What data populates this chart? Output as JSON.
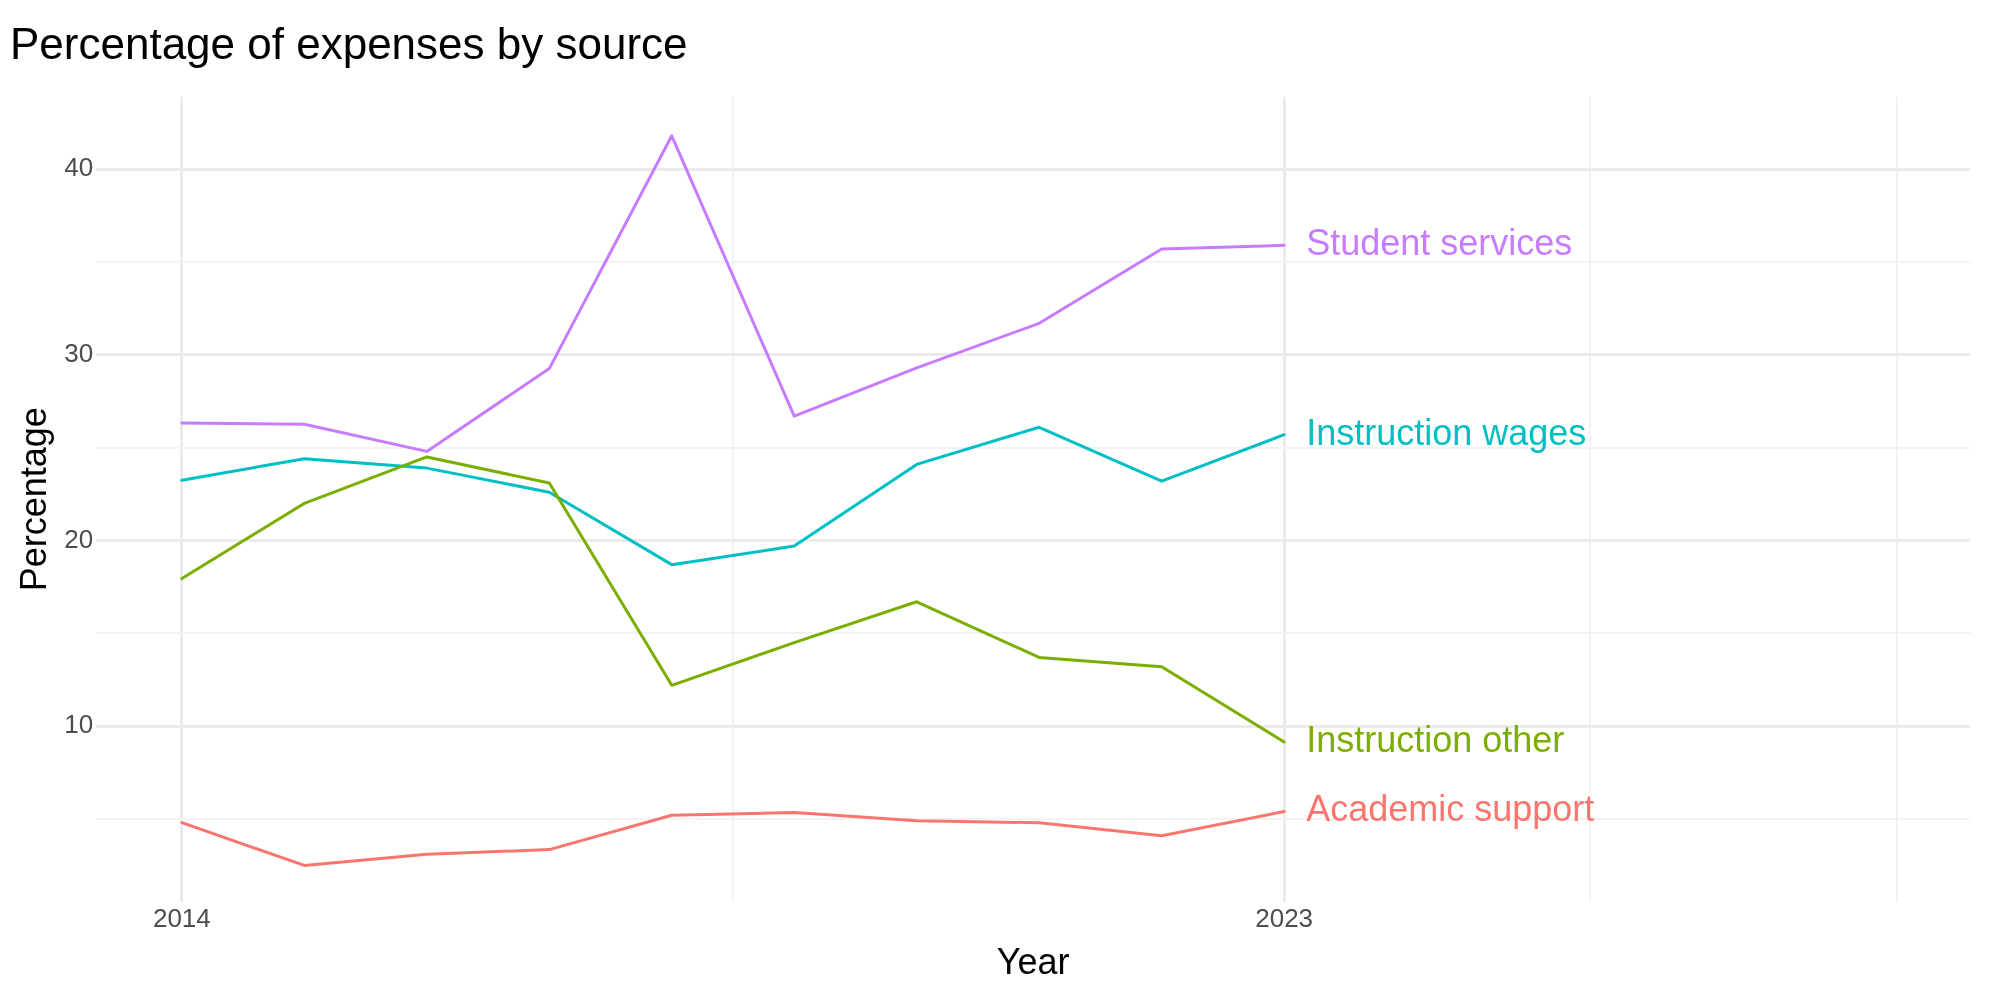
{
  "chart_data": {
    "type": "line",
    "title": "Percentage of expenses by source",
    "xlabel": "Year",
    "ylabel": "Percentage",
    "x": [
      2014,
      2015,
      2016,
      2017,
      2018,
      2019,
      2020,
      2021,
      2022,
      2023
    ],
    "series": [
      {
        "name": "Academic support",
        "color": "#f8766d",
        "values": [
          4.8,
          2.5,
          3.1,
          3.35,
          5.2,
          5.35,
          4.9,
          4.8,
          4.1,
          5.4
        ]
      },
      {
        "name": "Instruction other",
        "color": "#7cae00",
        "values": [
          17.95,
          22.0,
          24.5,
          23.1,
          12.2,
          14.5,
          16.7,
          13.7,
          13.2,
          9.15
        ]
      },
      {
        "name": "Instruction wages",
        "color": "#00bfc4",
        "values": [
          23.25,
          24.4,
          23.9,
          22.6,
          18.7,
          19.7,
          24.1,
          26.1,
          23.2,
          25.7
        ]
      },
      {
        "name": "Student services",
        "color": "#c77cff",
        "values": [
          26.33,
          26.26,
          24.8,
          29.26,
          41.8,
          26.7,
          29.3,
          31.7,
          35.7,
          35.9
        ]
      }
    ],
    "xlim": [
      2013.3,
      2028.6
    ],
    "xticks": [
      2014,
      {
        "value": 2018.5,
        "label": null
      },
      2023,
      {
        "value": 2025.5,
        "label": null
      },
      {
        "value": 2028,
        "label": null
      }
    ],
    "ylim": [
      0.55,
      43.9
    ],
    "yticks": [
      {
        "value": 5,
        "label": null
      },
      10,
      {
        "value": 15,
        "label": null
      },
      20,
      {
        "value": 25,
        "label": null
      },
      30,
      {
        "value": 35,
        "label": null
      },
      40
    ],
    "grid": true,
    "legend": false,
    "marker": "none",
    "line_style": "solid"
  }
}
